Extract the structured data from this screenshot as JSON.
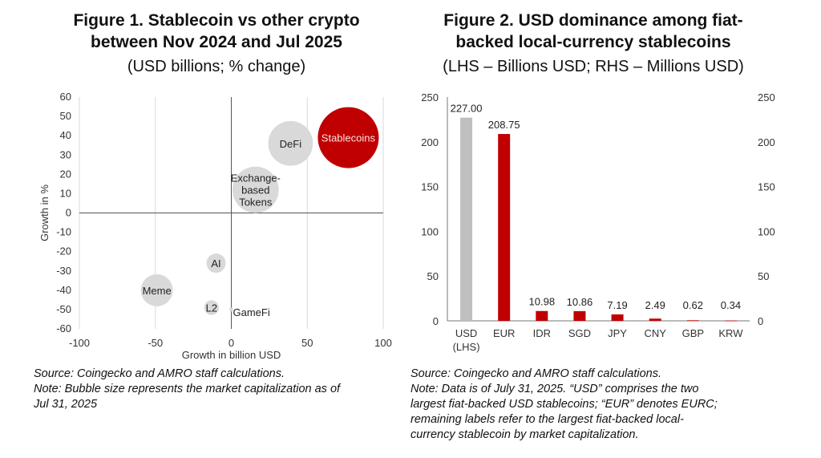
{
  "figure1": {
    "title_line1": "Figure 1. Stablecoin vs other crypto",
    "title_line2": "between Nov 2024 and Jul 2025",
    "subtitle": "(USD billions; % change)",
    "source": "Source: Coingecko and AMRO staff calculations.",
    "note_line1": "Note: Bubble size represents the market capitalization as of",
    "note_line2": "Jul 31, 2025"
  },
  "figure2": {
    "title_line1": "Figure 2. USD dominance among fiat-",
    "title_line2": "backed local-currency stablecoins",
    "subtitle": "(LHS – Billions USD; RHS – Millions USD)",
    "source": "Source: Coingecko and AMRO staff calculations.",
    "note_lines": [
      "Note: Data is of July 31, 2025. “USD” comprises the two",
      "largest fiat-backed USD stablecoins; “EUR” denotes EURC;",
      "remaining labels refer to the largest fiat-backed local-",
      "currency stablecoin by market capitalization."
    ]
  },
  "chart_data": [
    {
      "type": "scatter",
      "subtype": "bubble",
      "xlabel": "Growth in billion USD",
      "ylabel": "Growth in %",
      "xlim": [
        -100,
        100
      ],
      "ylim": [
        -60,
        60
      ],
      "xticks": [
        "-100",
        "-50",
        "0",
        "50",
        "100"
      ],
      "yticks": [
        "60",
        "50",
        "40",
        "30",
        "20",
        "10",
        "0",
        "-10",
        "-20",
        "-30",
        "-40",
        "-50",
        "-60"
      ],
      "grid": "vertical",
      "points": [
        {
          "label": "Stablecoins",
          "x": 77,
          "y": 39,
          "size": 260,
          "color": "#c00000"
        },
        {
          "label": "DeFi",
          "x": 39,
          "y": 36,
          "size": 140,
          "color": "#d9d9d9"
        },
        {
          "label": "Exchange-based Tokens",
          "label_lines": [
            "Exchange-",
            "based",
            "Tokens"
          ],
          "x": 16,
          "y": 12,
          "size": 150,
          "color": "#d9d9d9"
        },
        {
          "label": "AI",
          "x": -10,
          "y": -26,
          "size": 26,
          "color": "#d9d9d9"
        },
        {
          "label": "Meme",
          "x": -49,
          "y": -40,
          "size": 72,
          "color": "#d9d9d9"
        },
        {
          "label": "L2",
          "x": -13,
          "y": -49,
          "size": 15,
          "color": "#d9d9d9"
        },
        {
          "label": "GameFi",
          "x": 0,
          "y": -50,
          "size": 1,
          "color": "#d9d9d9"
        }
      ]
    },
    {
      "type": "bar",
      "categories": [
        "USD (LHS)",
        "EUR",
        "IDR",
        "SGD",
        "JPY",
        "CNY",
        "GBP",
        "KRW"
      ],
      "category_lines": [
        [
          "USD",
          "(LHS)"
        ],
        [
          "EUR"
        ],
        [
          "IDR"
        ],
        [
          "SGD"
        ],
        [
          "JPY"
        ],
        [
          "CNY"
        ],
        [
          "GBP"
        ],
        [
          "KRW"
        ]
      ],
      "values": [
        227.0,
        208.75,
        10.98,
        10.86,
        7.19,
        2.49,
        0.62,
        0.34
      ],
      "value_labels": [
        "227.00",
        "208.75",
        "10.98",
        "10.86",
        "7.19",
        "2.49",
        "0.62",
        "0.34"
      ],
      "colors": [
        "#bfbfbf",
        "#c00000",
        "#c00000",
        "#c00000",
        "#c00000",
        "#c00000",
        "#c00000",
        "#c00000"
      ],
      "ylim": [
        0,
        250
      ],
      "yticks_left": [
        "0",
        "50",
        "100",
        "150",
        "200",
        "250"
      ],
      "yticks_right": [
        "0",
        "50",
        "100",
        "150",
        "200",
        "250"
      ],
      "ylabel_left": "Billions USD",
      "ylabel_right": "Millions USD"
    }
  ]
}
